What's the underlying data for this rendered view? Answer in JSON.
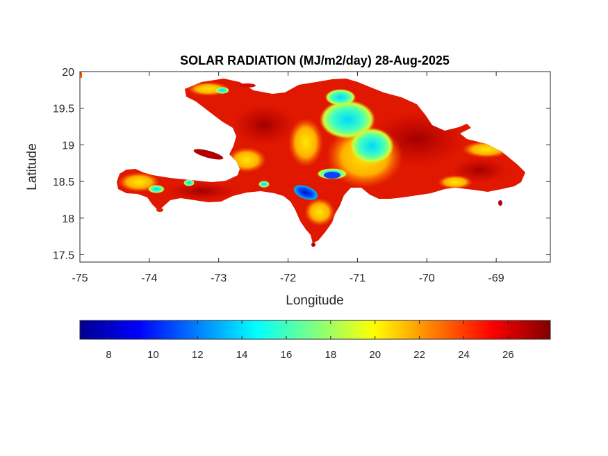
{
  "figure": {
    "title": "SOLAR RADIATION (MJ/m2/day) 28-Aug-2025",
    "xlabel": "Longitude",
    "ylabel": "Latitude"
  },
  "map": {
    "type": "heatmap",
    "region": "Hispaniola",
    "xlim": [
      -75,
      -68.22
    ],
    "ylim": [
      17.4,
      20
    ],
    "xticks": [
      -75,
      -74,
      -73,
      -72,
      -71,
      -70,
      -69
    ],
    "xtick_labels": [
      "-75",
      "-74",
      "-73",
      "-72",
      "-71",
      "-70",
      "-69"
    ],
    "yticks": [
      17.5,
      18,
      18.5,
      19,
      19.5,
      20
    ],
    "ytick_labels": [
      "17.5",
      "18",
      "18.5",
      "19",
      "19.5",
      "20"
    ],
    "colormap": "jet",
    "value_unit": "MJ/m2/day",
    "dominant_range": [
      23,
      27.5
    ],
    "low_value_areas": [
      {
        "feature": "lake-enriquillo",
        "approx_value": 9
      },
      {
        "feature": "lake-azuei",
        "approx_value": 10
      },
      {
        "feature": "cordillera-central",
        "approx_value": 15
      },
      {
        "feature": "lake-de-peligre",
        "approx_value": 12
      }
    ]
  },
  "colorbar": {
    "clim": [
      6.7,
      27.9
    ],
    "ticks": [
      8,
      10,
      12,
      14,
      16,
      18,
      20,
      22,
      24,
      26
    ],
    "tick_labels": [
      "8",
      "10",
      "12",
      "14",
      "16",
      "18",
      "20",
      "22",
      "24",
      "26"
    ],
    "stops": [
      "#00008F",
      "#0000FF",
      "#00FFFF",
      "#FFFF00",
      "#FF0000",
      "#800000"
    ]
  },
  "colors": {
    "background": "#FFFFFF",
    "axis": "#262626",
    "land_base": "#E01800"
  }
}
